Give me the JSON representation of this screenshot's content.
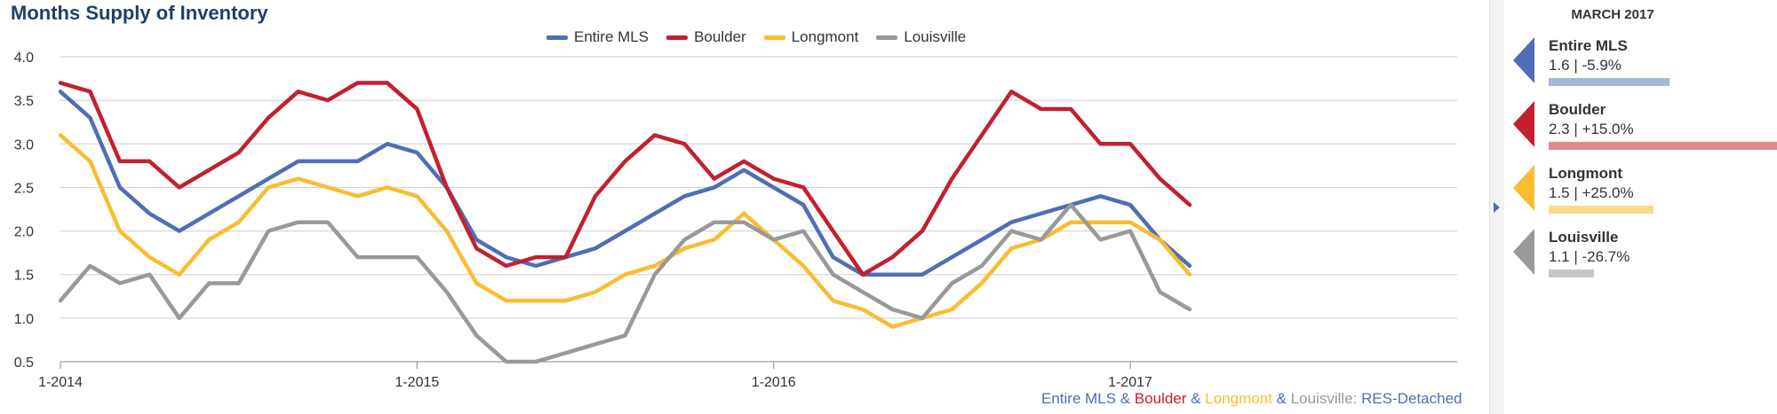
{
  "chart_data": {
    "type": "line",
    "title": "Months Supply of Inventory",
    "x": [
      "2014-01",
      "2014-02",
      "2014-03",
      "2014-04",
      "2014-05",
      "2014-06",
      "2014-07",
      "2014-08",
      "2014-09",
      "2014-10",
      "2014-11",
      "2014-12",
      "2015-01",
      "2015-02",
      "2015-03",
      "2015-04",
      "2015-05",
      "2015-06",
      "2015-07",
      "2015-08",
      "2015-09",
      "2015-10",
      "2015-11",
      "2015-12",
      "2016-01",
      "2016-02",
      "2016-03",
      "2016-04",
      "2016-05",
      "2016-06",
      "2016-07",
      "2016-08",
      "2016-09",
      "2016-10",
      "2016-11",
      "2016-12",
      "2017-01",
      "2017-02",
      "2017-03"
    ],
    "x_tick_labels": [
      "1-2014",
      "1-2015",
      "1-2016",
      "1-2017"
    ],
    "ylim": [
      0.5,
      4.0
    ],
    "y_ticks": [
      "0.5",
      "1.0",
      "1.5",
      "2.0",
      "2.5",
      "3.0",
      "3.5",
      "4.0"
    ],
    "grid": true,
    "legend_position": "top-center",
    "series": [
      {
        "name": "Entire MLS",
        "color": "#4e6eb5",
        "values": [
          3.6,
          3.3,
          2.5,
          2.2,
          2.0,
          2.2,
          2.4,
          2.6,
          2.8,
          2.8,
          2.8,
          3.0,
          2.9,
          2.5,
          1.9,
          1.7,
          1.6,
          1.7,
          1.8,
          2.0,
          2.2,
          2.4,
          2.5,
          2.7,
          2.5,
          2.3,
          1.7,
          1.5,
          1.5,
          1.5,
          1.7,
          1.9,
          2.1,
          2.2,
          2.3,
          2.4,
          2.3,
          1.9,
          1.6
        ]
      },
      {
        "name": "Boulder",
        "color": "#c3202e",
        "values": [
          3.7,
          3.6,
          2.8,
          2.8,
          2.5,
          2.7,
          2.9,
          3.3,
          3.6,
          3.5,
          3.7,
          3.7,
          3.4,
          2.5,
          1.8,
          1.6,
          1.7,
          1.7,
          2.4,
          2.8,
          3.1,
          3.0,
          2.6,
          2.8,
          2.6,
          2.5,
          2.0,
          1.5,
          1.7,
          2.0,
          2.6,
          3.1,
          3.6,
          3.4,
          3.4,
          3.0,
          3.0,
          2.6,
          2.3
        ]
      },
      {
        "name": "Longmont",
        "color": "#f8bd32",
        "values": [
          3.1,
          2.8,
          2.0,
          1.7,
          1.5,
          1.9,
          2.1,
          2.5,
          2.6,
          2.5,
          2.4,
          2.5,
          2.4,
          2.0,
          1.4,
          1.2,
          1.2,
          1.2,
          1.3,
          1.5,
          1.6,
          1.8,
          1.9,
          2.2,
          1.9,
          1.6,
          1.2,
          1.1,
          0.9,
          1.0,
          1.1,
          1.4,
          1.8,
          1.9,
          2.1,
          2.1,
          2.1,
          1.9,
          1.5
        ]
      },
      {
        "name": "Louisville",
        "color": "#999999",
        "values": [
          1.2,
          1.6,
          1.4,
          1.5,
          1.0,
          1.4,
          1.4,
          2.0,
          2.1,
          2.1,
          1.7,
          1.7,
          1.7,
          1.3,
          0.8,
          0.5,
          0.5,
          0.6,
          0.7,
          0.8,
          1.5,
          1.9,
          2.1,
          2.1,
          1.9,
          2.0,
          1.5,
          1.3,
          1.1,
          1.0,
          1.4,
          1.6,
          2.0,
          1.9,
          2.3,
          1.9,
          2.0,
          1.3,
          1.1
        ]
      }
    ]
  },
  "footer": {
    "entire": "Entire MLS",
    "amp1": " & ",
    "boulder": "Boulder",
    "amp2": " & ",
    "longmont": "Longmont",
    "amp3": " & ",
    "louisville_prefix": "Louisville: ",
    "type": "RES-Detached"
  },
  "panel": {
    "heading": "MARCH 2017",
    "cards": [
      {
        "name": "Entire MLS",
        "stat": "1.6 | -5.9%",
        "color": "#4e6eb5",
        "bar_color": "#a8b8dc",
        "bar_fraction": 0.53
      },
      {
        "name": "Boulder",
        "stat": "2.3 | +15.0%",
        "color": "#c3202e",
        "bar_color": "#e1888f",
        "bar_fraction": 1.0
      },
      {
        "name": "Longmont",
        "stat": "1.5 | +25.0%",
        "color": "#f8bd32",
        "bar_color": "#fbd98c",
        "bar_fraction": 0.46
      },
      {
        "name": "Louisville",
        "stat": "1.1 | -26.7%",
        "color": "#999999",
        "bar_color": "#c8c8c8",
        "bar_fraction": 0.2
      }
    ]
  }
}
